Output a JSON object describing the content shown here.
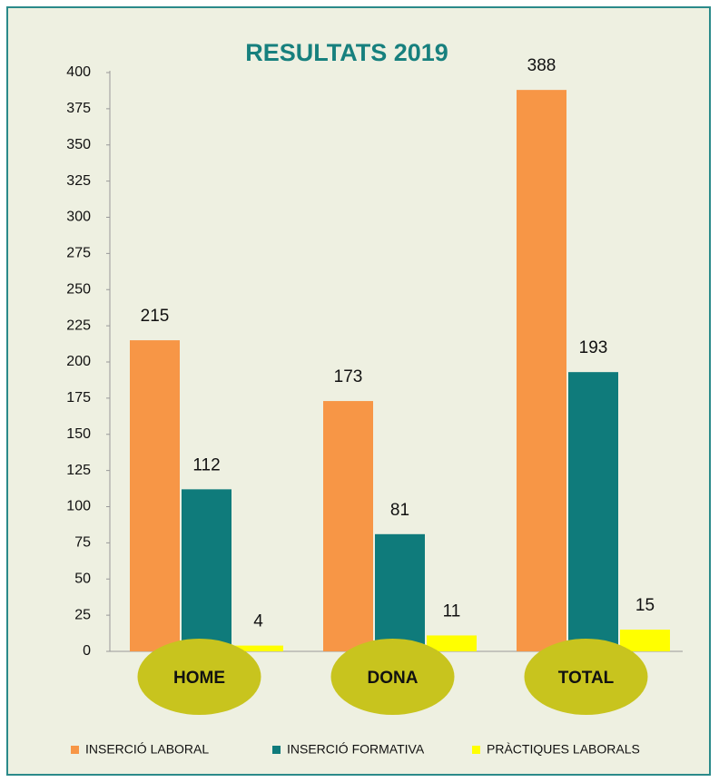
{
  "chart_data": {
    "type": "bar",
    "title": "RESULTATS 2019",
    "categories": [
      "HOME",
      "DONA",
      "TOTAL"
    ],
    "series": [
      {
        "name": "INSERCIÓ LABORAL",
        "color": "#f79646",
        "values": [
          215,
          173,
          388
        ]
      },
      {
        "name": "INSERCIÓ FORMATIVA",
        "color": "#0f7b7b",
        "values": [
          112,
          81,
          193
        ]
      },
      {
        "name": "PRÀCTIQUES LABORALS",
        "color": "#ffff00",
        "values": [
          4,
          11,
          15
        ]
      }
    ],
    "ylim": [
      0,
      400
    ],
    "yticks": [
      0,
      25,
      50,
      75,
      100,
      125,
      150,
      175,
      200,
      225,
      250,
      275,
      300,
      325,
      350,
      375,
      400
    ],
    "grid": false,
    "legend": "bottom",
    "category_color": "#c8c41e"
  }
}
